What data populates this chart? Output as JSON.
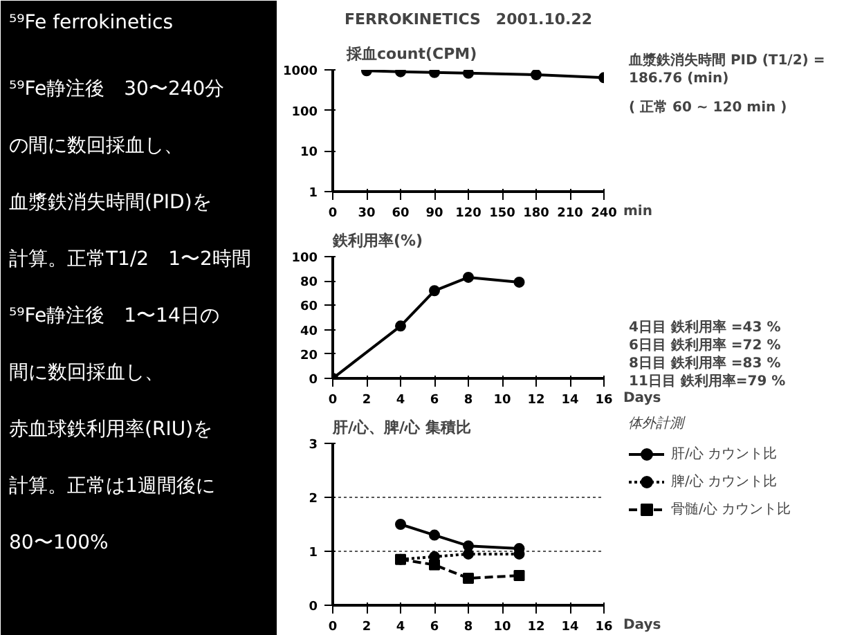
{
  "chart_data": [
    {
      "type": "other",
      "title": "⁵⁹Fe ferrokinetics",
      "annotations": [
        "⁵⁹Fe静注後　30〜240分",
        "の間に数回採血し、",
        "血漿鉄消失時間(PID)を",
        "計算。正常T1/2　1〜2時間",
        "⁵⁹Fe静注後　1〜14日の",
        "間に数回採血し、",
        "赤血球鉄利用率(RIU)を",
        "計算。正常は1週間後に",
        "80〜100%"
      ]
    },
    {
      "type": "line",
      "title": "FERROKINETICS　2001.10.22",
      "subtitle": "採血count(CPM)",
      "xlabel": "min",
      "x": [
        30,
        60,
        90,
        120,
        180,
        240
      ],
      "values": [
        950,
        900,
        860,
        830,
        760,
        640
      ],
      "color": "#000000",
      "log": "y",
      "xlim": [
        0,
        240
      ],
      "xticks": [
        0,
        30,
        60,
        90,
        120,
        150,
        180,
        210,
        240
      ],
      "ylim": [
        1,
        1000
      ],
      "yticks": [
        1,
        10,
        100,
        1000
      ],
      "marker": "circle",
      "line_style": "solid",
      "annotations": [
        "血漿鉄消失時間 PID (T1/2) = 186.76 (min)",
        "( 正常 60 ~ 120 min )"
      ]
    },
    {
      "type": "line",
      "title": "鉄利用率(%)",
      "xlabel": "Days",
      "x": [
        0,
        4,
        6,
        8,
        11
      ],
      "values": [
        0,
        43,
        72,
        83,
        79
      ],
      "color": "#000000",
      "xlim": [
        0,
        16
      ],
      "xticks": [
        0,
        2,
        4,
        6,
        8,
        10,
        12,
        14,
        16
      ],
      "ylim": [
        0,
        100
      ],
      "yticks": [
        0,
        20,
        40,
        60,
        80,
        100
      ],
      "marker": "circle",
      "line_style": "solid",
      "annotations": [
        "4日目 鉄利用率 =43 %",
        "6日目 鉄利用率 =72 %",
        "8日目 鉄利用率 =83 %",
        "11日目 鉄利用率=79 %"
      ]
    },
    {
      "type": "line",
      "title": "肝/心、脾/心 集積比",
      "xlabel": "Days",
      "legend_title": "体外計測",
      "legend": "right",
      "grid": "y",
      "xlim": [
        0,
        16
      ],
      "xticks": [
        0,
        2,
        4,
        6,
        8,
        10,
        12,
        14,
        16
      ],
      "ylim": [
        0,
        3
      ],
      "yticks": [
        0,
        1,
        2,
        3
      ],
      "series": [
        {
          "name": "肝/心 カウント比",
          "color": "#000000",
          "x": [
            4,
            6,
            8,
            11
          ],
          "values": [
            1.5,
            1.3,
            1.1,
            1.05
          ],
          "marker": "circle",
          "line_style": "solid"
        },
        {
          "name": "脾/心 カウント比",
          "color": "#000000",
          "x": [
            4,
            6,
            8,
            11
          ],
          "values": [
            0.85,
            0.9,
            0.95,
            0.95
          ],
          "marker": "circle",
          "line_style": "dotted"
        },
        {
          "name": "骨髄/心 カウント比",
          "color": "#000000",
          "x": [
            4,
            6,
            8,
            11
          ],
          "values": [
            0.85,
            0.75,
            0.5,
            0.55
          ],
          "marker": "square",
          "line_style": "dashed"
        }
      ]
    }
  ]
}
